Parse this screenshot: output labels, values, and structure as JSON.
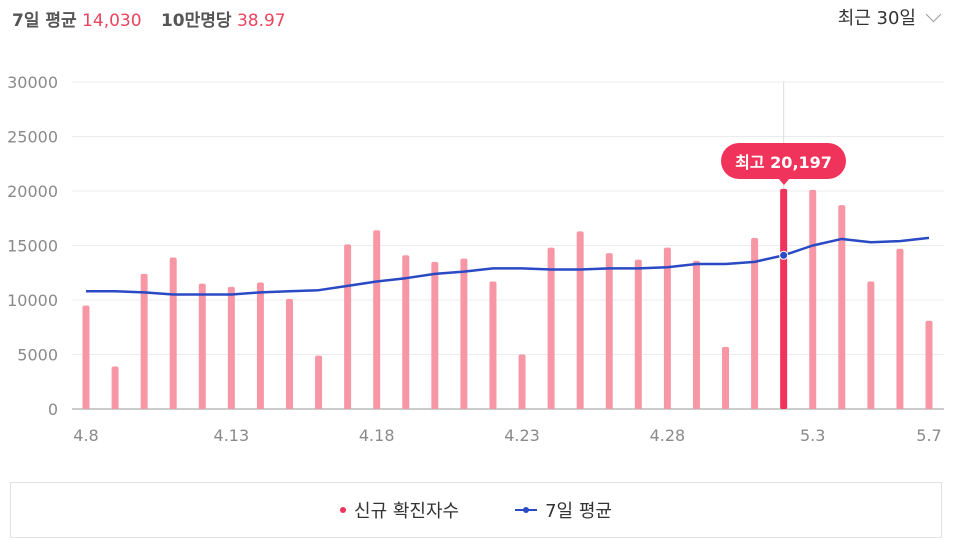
{
  "header": {
    "avg_label": "7일 평균",
    "avg_value": "14,030",
    "per100k_label": "10만명당",
    "per100k_value": "38.97",
    "period_select": "최근 30일",
    "period_icon": "chevron-down-icon"
  },
  "callout": {
    "label": "최고",
    "value": "20,197"
  },
  "legend": {
    "new_cases": "신규 확진자수",
    "seven_day_avg": "7일 평균"
  },
  "colors": {
    "bar": "#f797a6",
    "bar_highlight": "#f0335a",
    "line": "#2a49c4"
  },
  "chart_data": {
    "type": "bar",
    "title": "",
    "xlabel": "",
    "ylabel": "",
    "ylim": [
      0,
      30000
    ],
    "yticks": [
      0,
      5000,
      10000,
      15000,
      20000,
      25000,
      30000
    ],
    "xtick_labels": [
      "4.8",
      "4.13",
      "4.18",
      "4.23",
      "4.28",
      "5.3",
      "5.7"
    ],
    "xtick_indices": [
      0,
      5,
      10,
      15,
      20,
      25,
      29
    ],
    "categories": [
      "4.8",
      "4.9",
      "4.10",
      "4.11",
      "4.12",
      "4.13",
      "4.14",
      "4.15",
      "4.16",
      "4.17",
      "4.18",
      "4.19",
      "4.20",
      "4.21",
      "4.22",
      "4.23",
      "4.24",
      "4.25",
      "4.26",
      "4.27",
      "4.28",
      "4.29",
      "4.30",
      "5.1",
      "5.2",
      "5.3",
      "5.4",
      "5.5",
      "5.6",
      "5.7"
    ],
    "highlight_index": 24,
    "series": [
      {
        "name": "신규 확진자수",
        "type": "bar",
        "values": [
          9500,
          3900,
          12400,
          13900,
          11500,
          11200,
          11600,
          10100,
          4900,
          15100,
          16400,
          14100,
          13500,
          13800,
          11700,
          5000,
          14800,
          16300,
          14300,
          13700,
          14800,
          13600,
          5700,
          15700,
          20197,
          20100,
          18700,
          11700,
          14700,
          8100
        ]
      },
      {
        "name": "7일 평균",
        "type": "line",
        "values": [
          10800,
          10800,
          10700,
          10500,
          10500,
          10500,
          10700,
          10800,
          10900,
          11300,
          11700,
          12000,
          12400,
          12600,
          12900,
          12900,
          12800,
          12800,
          12900,
          12900,
          13000,
          13300,
          13300,
          13500,
          14100,
          15000,
          15600,
          15300,
          15400,
          15700
        ]
      }
    ],
    "grid": true,
    "legend_position": "bottom"
  }
}
